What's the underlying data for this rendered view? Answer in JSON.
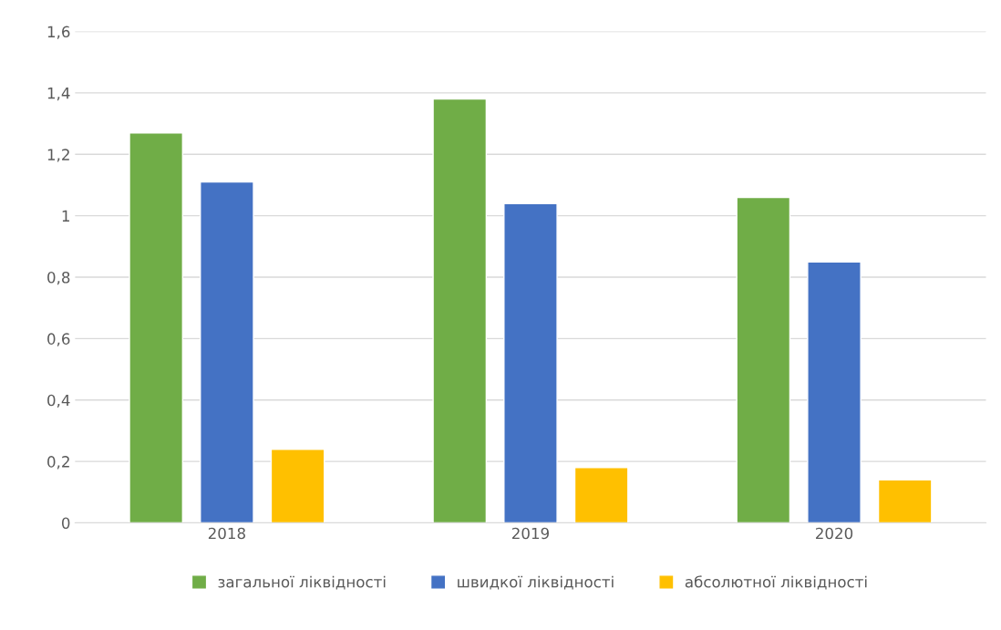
{
  "chart_data": {
    "type": "bar",
    "categories": [
      "2018",
      "2019",
      "2020"
    ],
    "series": [
      {
        "name": "загальної ліквідності",
        "color": "#70ad47",
        "values": [
          1.27,
          1.38,
          1.06
        ]
      },
      {
        "name": "швидкої ліквідності",
        "color": "#4472c4",
        "values": [
          1.11,
          1.04,
          0.85
        ]
      },
      {
        "name": "абсолютної ліквідності",
        "color": "#ffc000",
        "values": [
          0.24,
          0.18,
          0.14
        ]
      }
    ],
    "ylim": [
      0,
      1.6
    ],
    "yticks": [
      0,
      {
        "value": 0.2,
        "label": "0,2"
      },
      {
        "value": 0.4,
        "label": "0,4"
      },
      {
        "value": 0.6,
        "label": "0,6"
      },
      {
        "value": 0.8,
        "label": "0,8"
      },
      1,
      {
        "value": 1.2,
        "label": "1,2"
      },
      {
        "value": 1.4,
        "label": "1,4"
      },
      {
        "value": 1.6,
        "label": "1,6"
      }
    ],
    "grid": "y",
    "legend": "bottom"
  }
}
